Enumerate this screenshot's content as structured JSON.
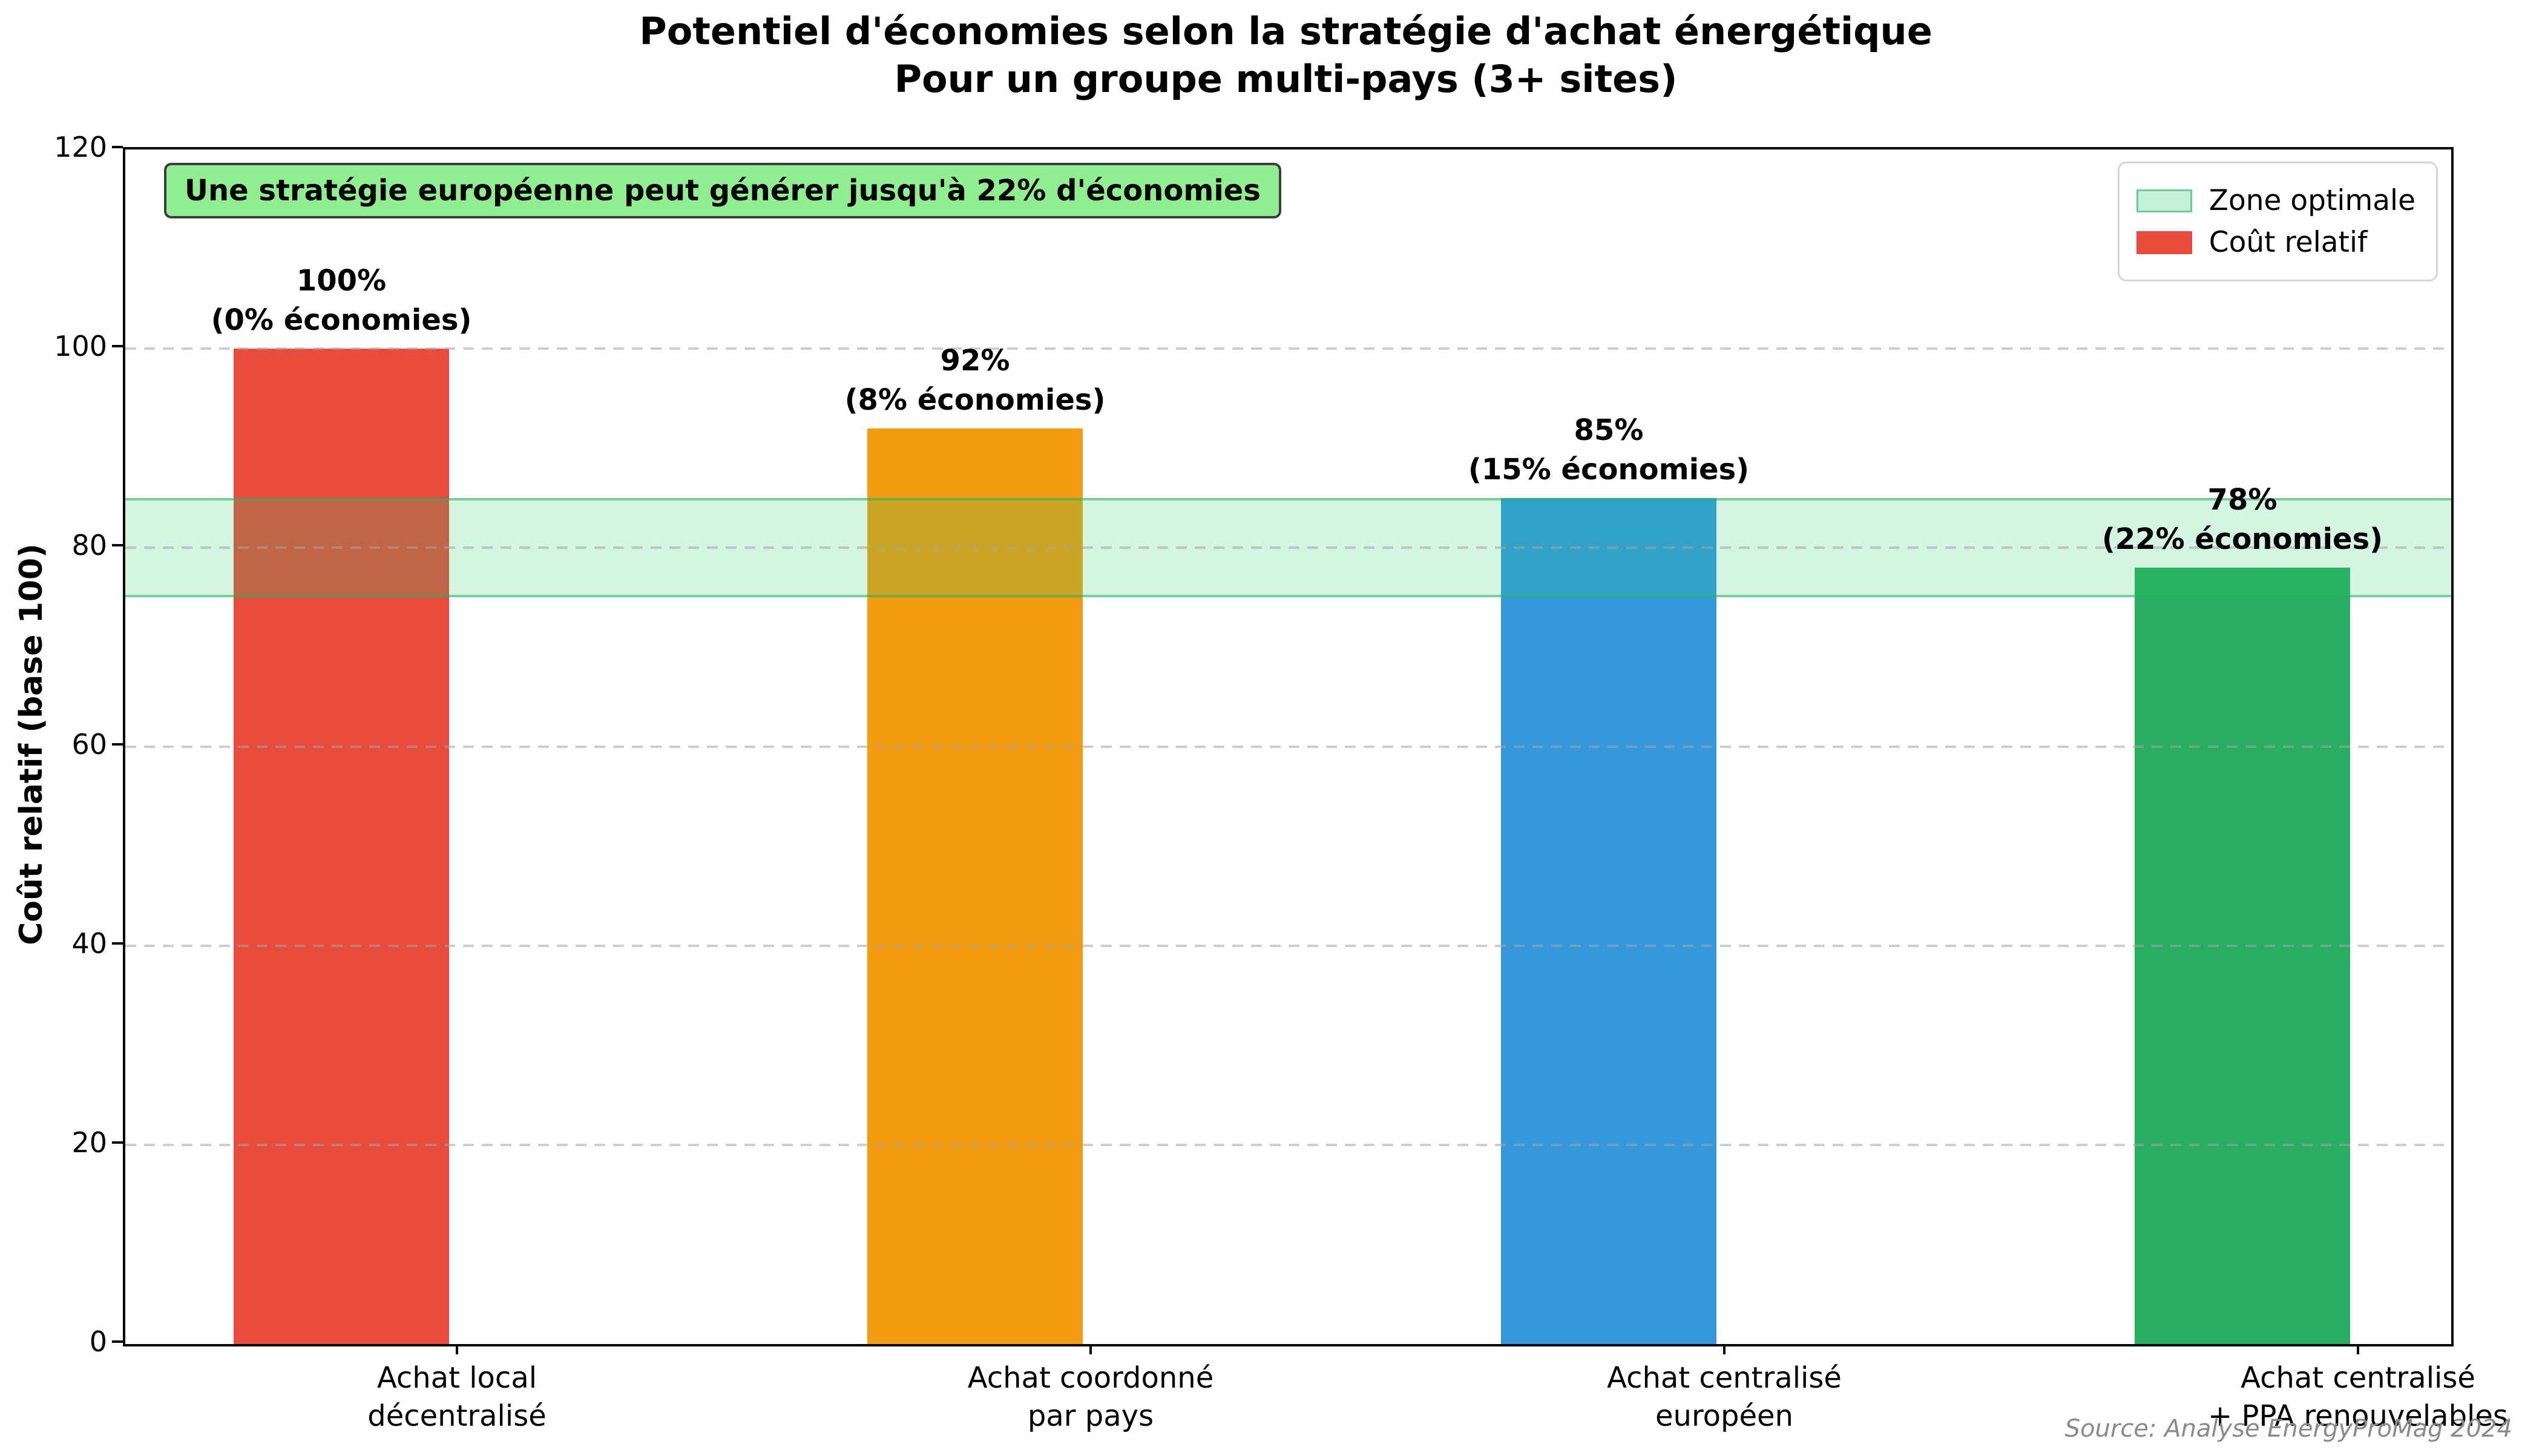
{
  "title": {
    "line1": "Potentiel d'économies selon la stratégie d'achat énergétique",
    "line2": "Pour un groupe multi-pays (3+ sites)"
  },
  "annotation": "Une stratégie européenne peut générer jusqu'à 22% d'économies",
  "legend": [
    {
      "label": "Zone optimale",
      "swatch_fill": "rgba(46,204,113,0.28)",
      "swatch_edge": "rgba(39,174,96,0.55)"
    },
    {
      "label": "Coût relatif",
      "swatch_fill": "#E74C3C"
    }
  ],
  "source": "Source: Analyse EnergyProMag 2024",
  "chart_data": {
    "type": "bar",
    "categories": [
      [
        "Achat local",
        "décentralisé"
      ],
      [
        "Achat coordonné",
        "par pays"
      ],
      [
        "Achat centralisé",
        "européen"
      ],
      [
        "Achat centralisé",
        "+ PPA renouvelables"
      ]
    ],
    "values": [
      100,
      92,
      85,
      78
    ],
    "bar_labels": [
      [
        "100%",
        "(0% économies)"
      ],
      [
        "92%",
        "(8% économies)"
      ],
      [
        "85%",
        "(15% économies)"
      ],
      [
        "78%",
        "(22% économies)"
      ]
    ],
    "bar_colors": [
      "#E74C3C",
      "#F39C12",
      "#3498DB",
      "#27AE60"
    ],
    "title": "Potentiel d'économies selon la stratégie d'achat énergétique — Pour un groupe multi-pays (3+ sites)",
    "xlabel": "",
    "ylabel": "Coût relatif (base 100)",
    "ylim": [
      0,
      120
    ],
    "yticks": [
      0,
      20,
      40,
      60,
      80,
      100,
      120
    ],
    "grid": "horizontal dashed",
    "legend_position": "upper right",
    "optimal_zone": {
      "from": 75,
      "to": 85,
      "label": "Zone optimale",
      "fill": "rgba(46,204,113,0.20)",
      "edge": "rgba(39,174,96,0.55)"
    }
  }
}
